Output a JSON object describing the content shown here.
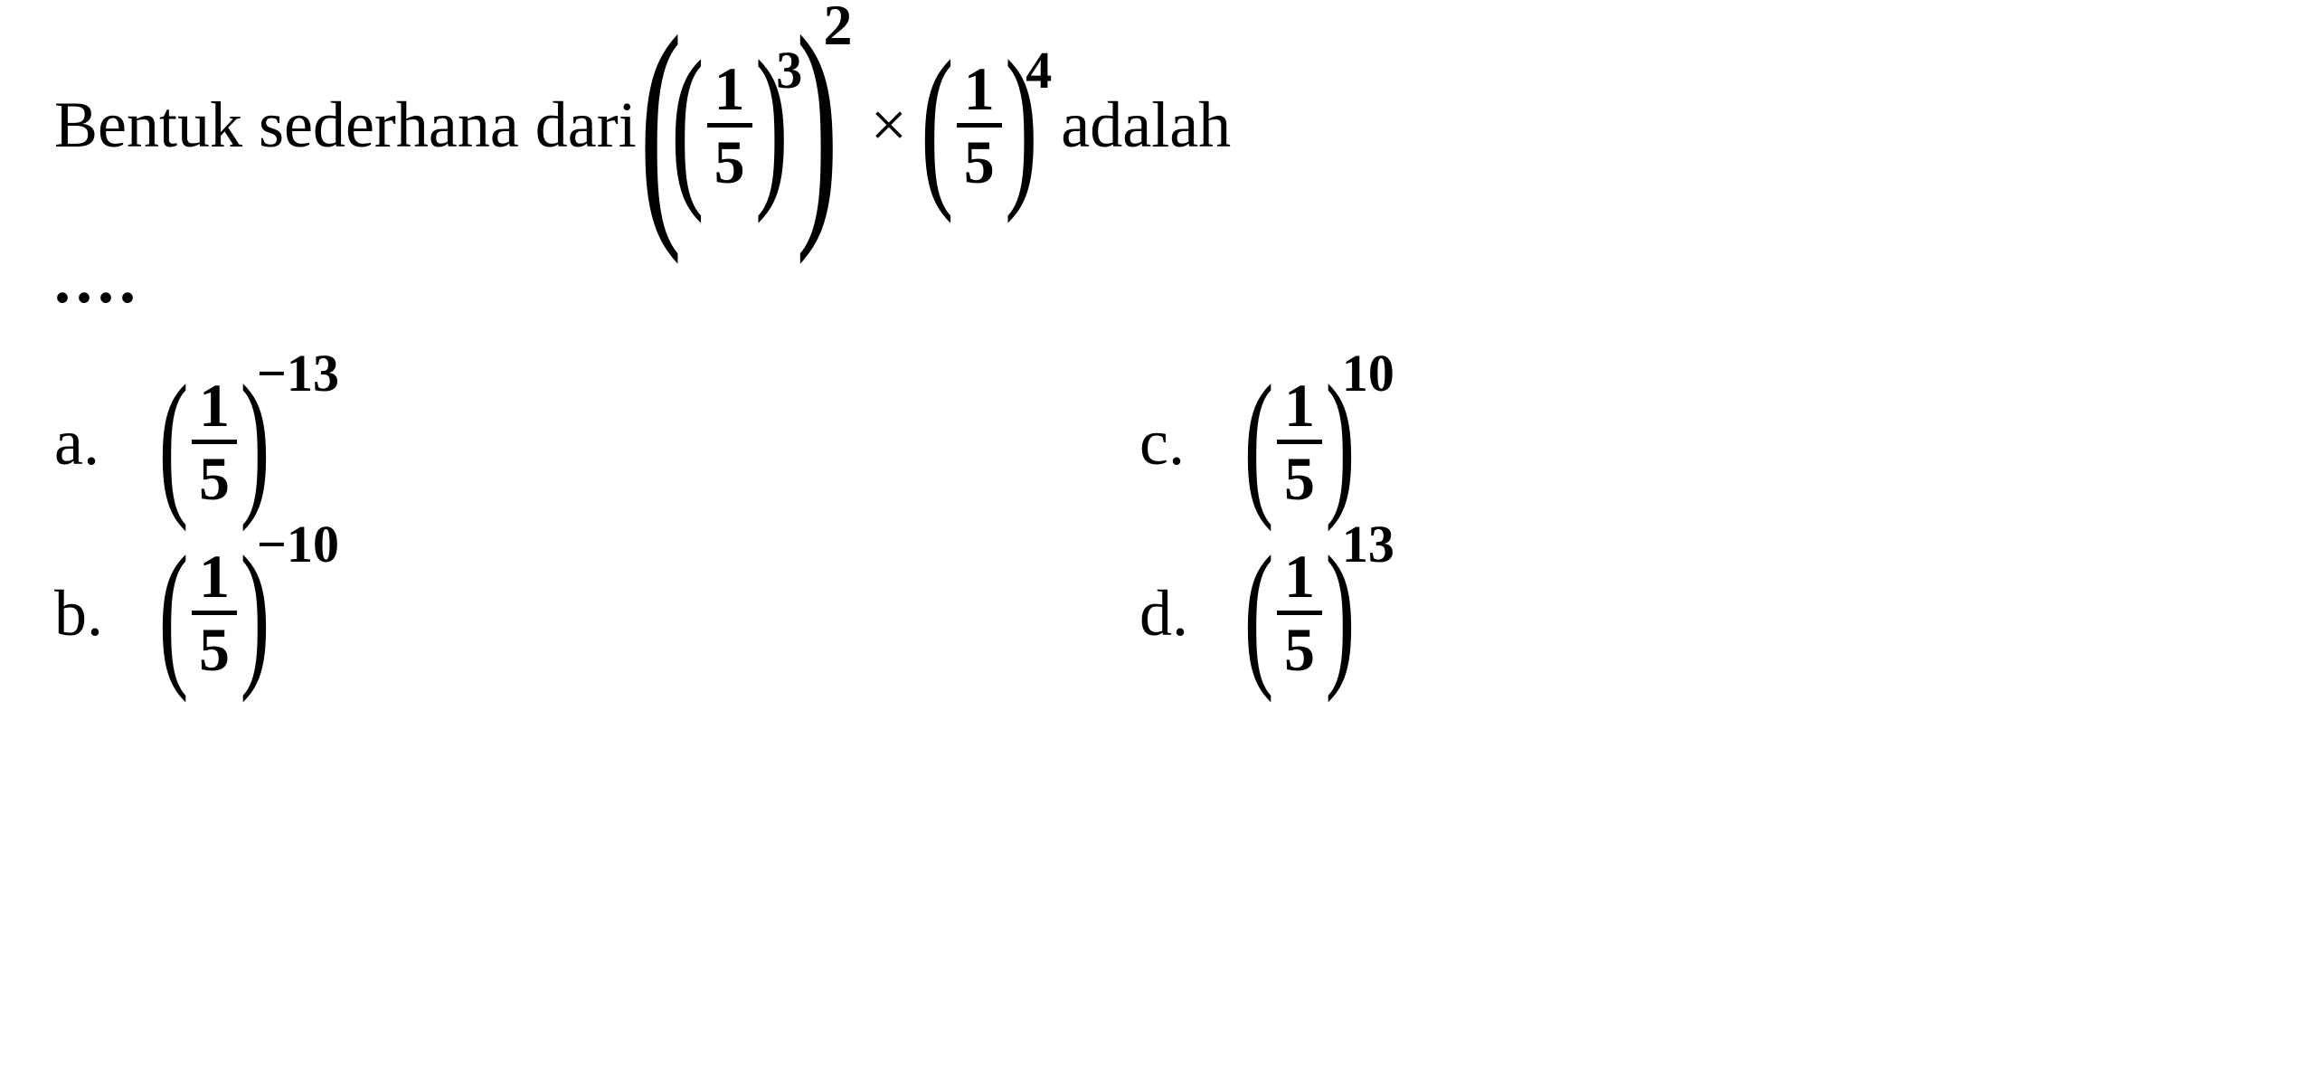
{
  "question": {
    "text_before": "Bentuk sederhana dari ",
    "text_after": " adalah",
    "dots": "....",
    "expression": {
      "base_num": "1",
      "base_den": "5",
      "inner_exp": "3",
      "outer_exp": "2",
      "times": "×",
      "second_num": "1",
      "second_den": "5",
      "second_exp": "4"
    }
  },
  "answers": {
    "a": {
      "label": "a.",
      "num": "1",
      "den": "5",
      "exp": "−13"
    },
    "b": {
      "label": "b.",
      "num": "1",
      "den": "5",
      "exp": "−10"
    },
    "c": {
      "label": "c.",
      "num": "1",
      "den": "5",
      "exp": "10"
    },
    "d": {
      "label": "d.",
      "num": "1",
      "den": "5",
      "exp": "13"
    }
  },
  "styling": {
    "background_color": "#ffffff",
    "text_color": "#000000",
    "font_family": "Times New Roman",
    "base_font_size": 72,
    "fraction_font_size": 68,
    "superscript_font_size": 58,
    "line_thickness": 5
  }
}
